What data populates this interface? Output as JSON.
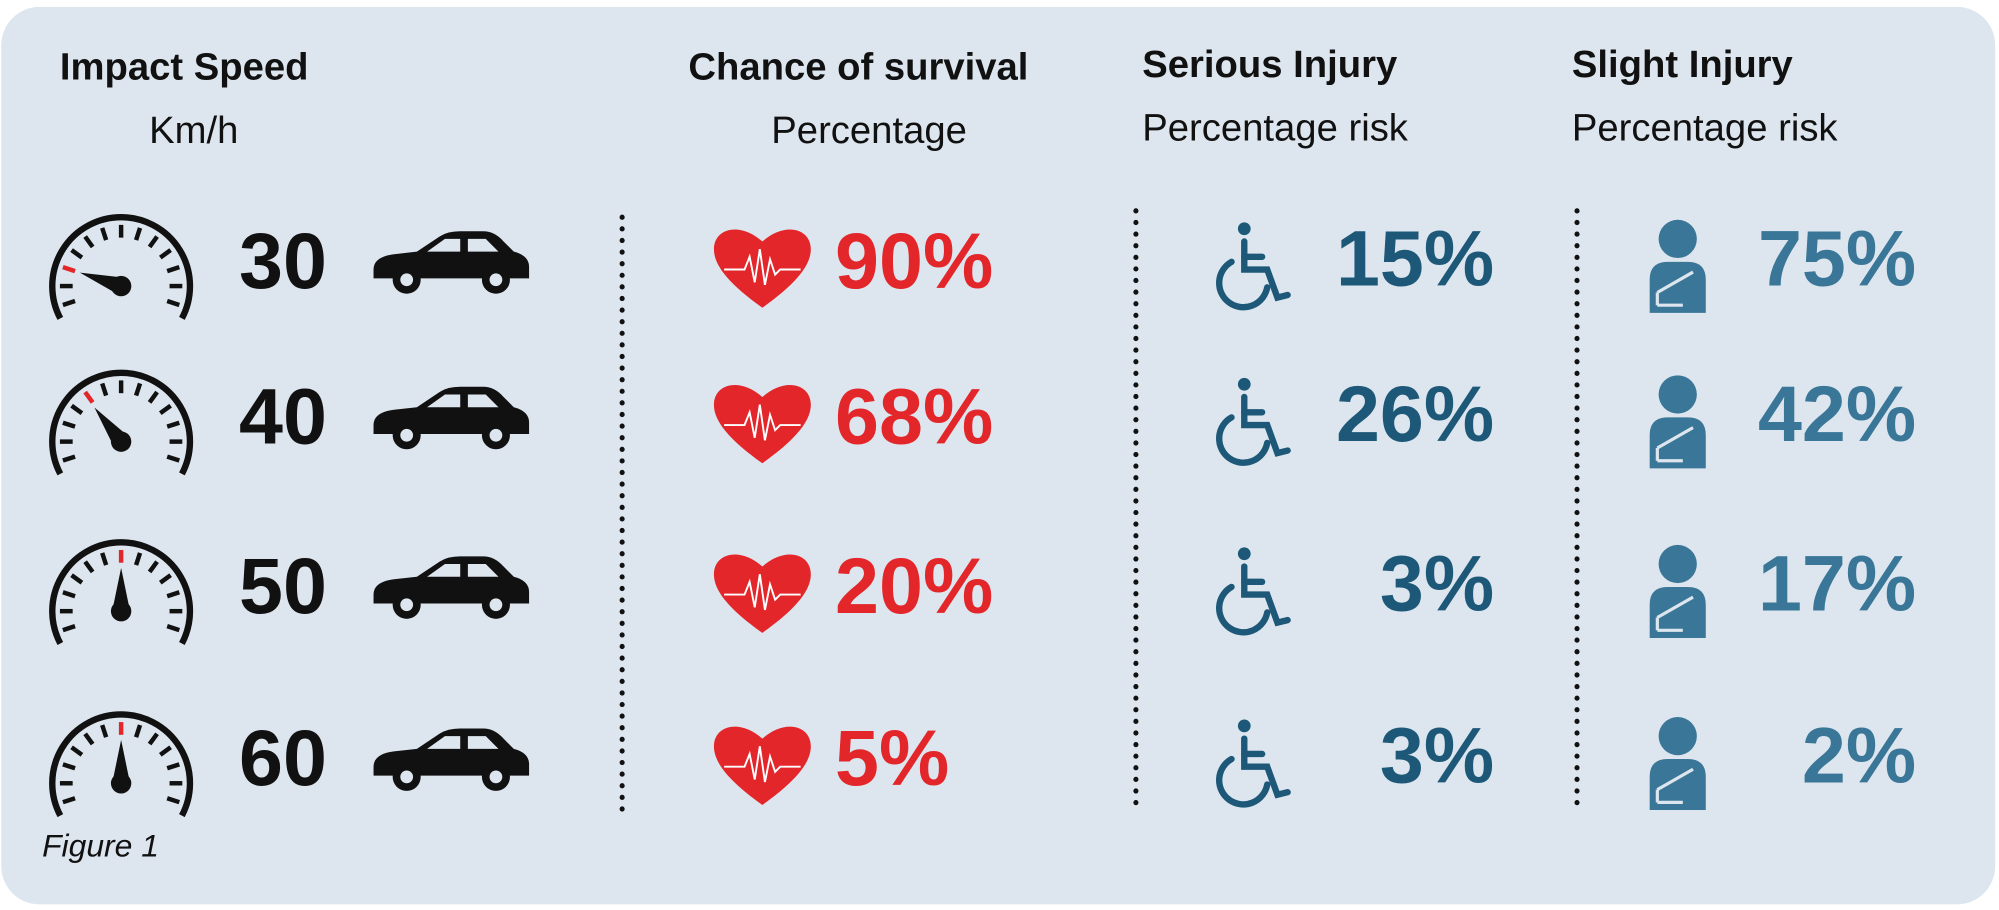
{
  "header": {
    "impact_speed": {
      "title": "Impact Speed",
      "unit": "Km/h"
    },
    "survival": {
      "title": "Chance of survival",
      "unit": "Percentage"
    },
    "serious": {
      "title": "Serious Injury",
      "unit": "Percentage risk"
    },
    "slight": {
      "title": "Slight Injury",
      "unit": "Percentage risk"
    }
  },
  "rows": [
    {
      "speed": "30",
      "survival": "90%",
      "serious": "15%",
      "slight": "75%"
    },
    {
      "speed": "40",
      "survival": "68%",
      "serious": "26%",
      "slight": "42%"
    },
    {
      "speed": "50",
      "survival": "20%",
      "serious": "3%",
      "slight": "17%"
    },
    {
      "speed": "60",
      "survival": "5%",
      "serious": "3%",
      "slight": "2%"
    }
  ],
  "caption": "Figure 1"
}
